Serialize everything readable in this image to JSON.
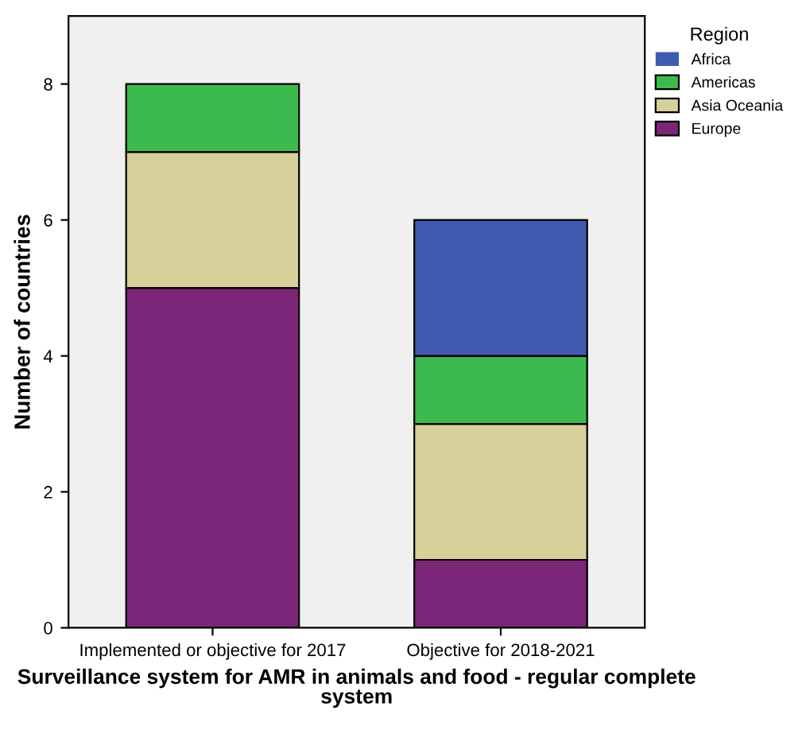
{
  "chart_data": {
    "type": "bar",
    "stacked": true,
    "categories": [
      "Implemented or objective for 2017",
      "Objective for 2018-2021"
    ],
    "series": [
      {
        "name": "Europe",
        "color": "#7b2678",
        "values": [
          5,
          1
        ]
      },
      {
        "name": "Asia Oceania",
        "color": "#d6d09b",
        "values": [
          2,
          2
        ]
      },
      {
        "name": "Americas",
        "color": "#3dba4e",
        "values": [
          1,
          1
        ]
      },
      {
        "name": "Africa",
        "color": "#3f5bb0",
        "values": [
          0,
          2
        ]
      }
    ],
    "xlabel": "Surveillance system for AMR in animals and food - regular complete system",
    "ylabel": "Number of countries",
    "legend_title": "Region",
    "legend": "top right",
    "ylim": [
      0,
      9
    ],
    "yticks": [
      0,
      2,
      4,
      6,
      8
    ],
    "grid": false
  }
}
